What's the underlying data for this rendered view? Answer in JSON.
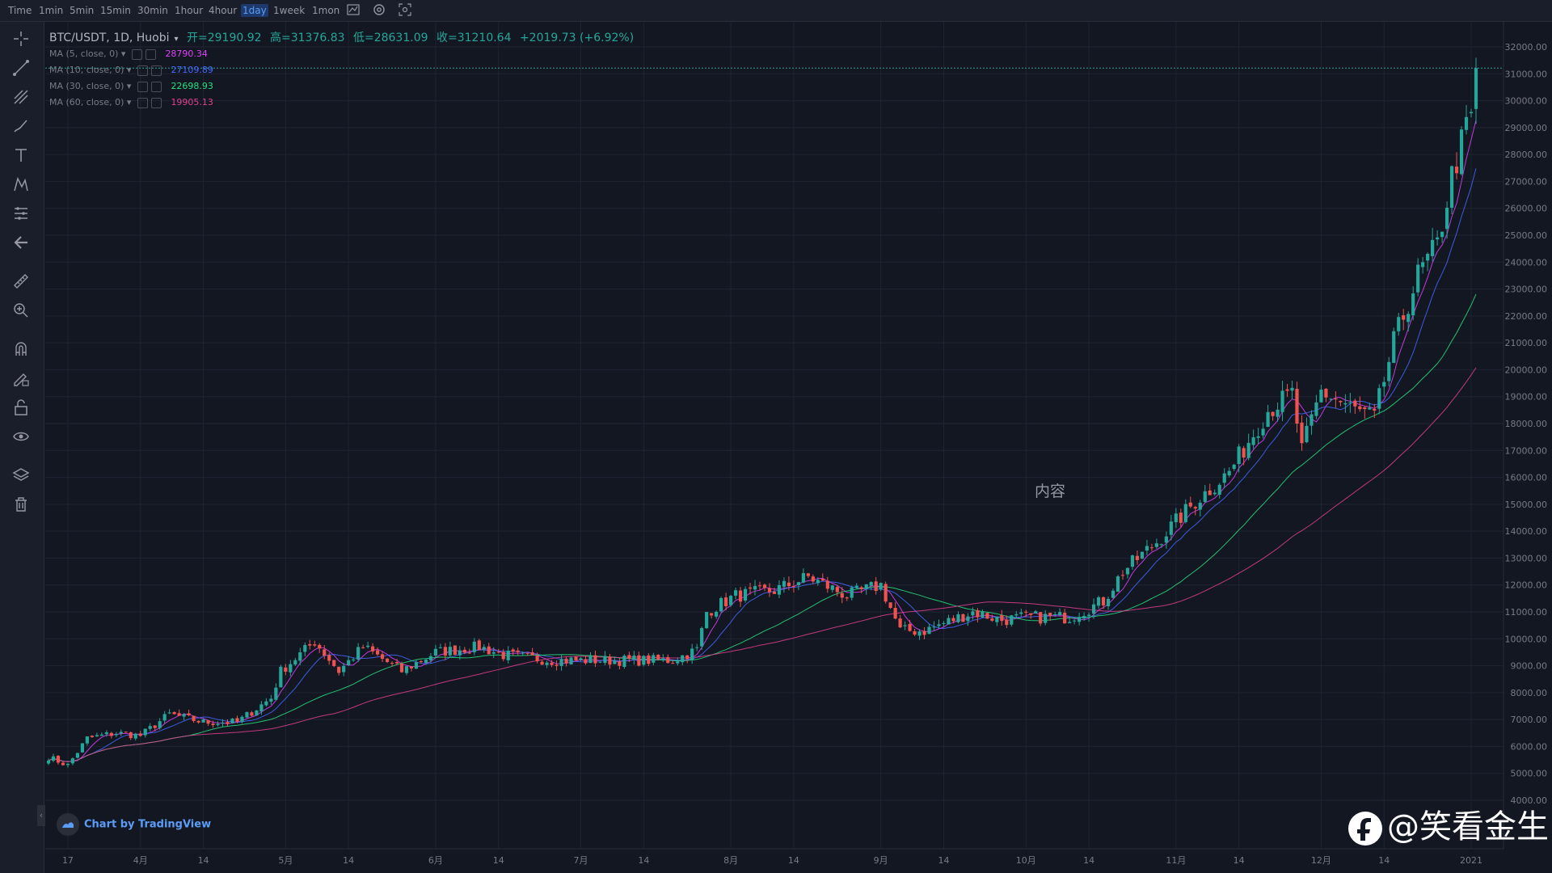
{
  "toolbar": {
    "timeframes": [
      "Time",
      "1min",
      "5min",
      "15min",
      "30min",
      "1hour",
      "4hour",
      "1day",
      "1week",
      "1mon"
    ],
    "active_timeframe": "1day",
    "icons": [
      "indicator-icon",
      "settings-icon",
      "screenshot-icon"
    ]
  },
  "left_tools": [
    "crosshair-icon",
    "trendline-icon",
    "fib-icon",
    "brush-icon",
    "text-icon",
    "pattern-icon",
    "measure-lines-icon",
    "back-arrow-icon",
    "ruler-icon",
    "zoom-in-icon",
    "magnet-icon",
    "lock-pencil-icon",
    "lock-icon",
    "eye-icon",
    "layers-icon",
    "trash-icon"
  ],
  "legend": {
    "symbol": "BTC/USDT, 1D, Huobi",
    "open_label": "开=29190.92",
    "high_label": "高=31376.83",
    "low_label": "低=28631.09",
    "close_label": "收=31210.64",
    "change_label": "+2019.73 (+6.92%)",
    "ma": [
      {
        "label": "MA (5, close, 0)",
        "value": "28790.34",
        "color": "#e040fb"
      },
      {
        "label": "MA (10, close, 0)",
        "value": "27109.89",
        "color": "#4468ff"
      },
      {
        "label": "MA (30, close, 0)",
        "value": "22698.93",
        "color": "#26e07f"
      },
      {
        "label": "MA (60, close, 0)",
        "value": "19905.13",
        "color": "#e0408f"
      }
    ]
  },
  "center_watermark": "内容",
  "tv_badge": "Chart by TradingView",
  "brand_watermark": "@笑看金生",
  "colors": {
    "up": "#26a69a",
    "down": "#ef5350",
    "background": "#131722",
    "grid": "#1f2433",
    "price_line": "#26a69a"
  },
  "chart_data": {
    "type": "candlestick",
    "symbol": "BTC/USDT",
    "interval": "1D",
    "ylim": [
      4000,
      32500
    ],
    "y_ticks": [
      "4000.00",
      "5000.00",
      "6000.00",
      "7000.00",
      "8000.00",
      "9000.00",
      "10000.00",
      "11000.00",
      "12000.00",
      "13000.00",
      "14000.00",
      "15000.00",
      "16000.00",
      "17000.00",
      "18000.00",
      "19000.00",
      "20000.00",
      "21000.00",
      "22000.00",
      "23000.00",
      "24000.00",
      "25000.00",
      "26000.00",
      "27000.00",
      "28000.00",
      "29000.00",
      "30000.00",
      "31000.00",
      "32000.00"
    ],
    "x_ticks": [
      "17",
      "4月",
      "14",
      "5月",
      "14",
      "6月",
      "14",
      "7月",
      "14",
      "8月",
      "14",
      "9月",
      "14",
      "10月",
      "14",
      "11月",
      "14",
      "12月",
      "14",
      "2021"
    ],
    "last_price": "31210.64",
    "close_series": [
      [
        "2020-03-13",
        5600
      ],
      [
        "2020-03-17",
        5300
      ],
      [
        "2020-03-21",
        6300
      ],
      [
        "2020-03-27",
        6500
      ],
      [
        "2020-04-01",
        6400
      ],
      [
        "2020-04-07",
        7200
      ],
      [
        "2020-04-14",
        6900
      ],
      [
        "2020-04-21",
        6900
      ],
      [
        "2020-04-28",
        7800
      ],
      [
        "2020-04-30",
        8800
      ],
      [
        "2020-05-07",
        9900
      ],
      [
        "2020-05-12",
        8800
      ],
      [
        "2020-05-17",
        9700
      ],
      [
        "2020-05-25",
        8800
      ],
      [
        "2020-06-01",
        9500
      ],
      [
        "2020-06-10",
        9700
      ],
      [
        "2020-06-15",
        9400
      ],
      [
        "2020-06-25",
        9200
      ],
      [
        "2020-07-01",
        9200
      ],
      [
        "2020-07-10",
        9200
      ],
      [
        "2020-07-20",
        9200
      ],
      [
        "2020-07-25",
        9600
      ],
      [
        "2020-07-27",
        11000
      ],
      [
        "2020-08-02",
        11600
      ],
      [
        "2020-08-10",
        11800
      ],
      [
        "2020-08-17",
        12300
      ],
      [
        "2020-08-25",
        11600
      ],
      [
        "2020-09-01",
        12000
      ],
      [
        "2020-09-05",
        10300
      ],
      [
        "2020-09-10",
        10300
      ],
      [
        "2020-09-20",
        11000
      ],
      [
        "2020-09-26",
        10700
      ],
      [
        "2020-10-01",
        10800
      ],
      [
        "2020-10-10",
        10800
      ],
      [
        "2020-10-17",
        11400
      ],
      [
        "2020-10-21",
        12500
      ],
      [
        "2020-10-28",
        13600
      ],
      [
        "2020-11-05",
        15100
      ],
      [
        "2020-11-12",
        16200
      ],
      [
        "2020-11-20",
        18500
      ],
      [
        "2020-11-25",
        19100
      ],
      [
        "2020-11-27",
        17000
      ],
      [
        "2020-12-01",
        19200
      ],
      [
        "2020-12-08",
        18500
      ],
      [
        "2020-12-12",
        18200
      ],
      [
        "2020-12-16",
        21000
      ],
      [
        "2020-12-21",
        23500
      ],
      [
        "2020-12-25",
        24600
      ],
      [
        "2020-12-28",
        27200
      ],
      [
        "2020-12-31",
        29000
      ],
      [
        "2021-01-01",
        29400
      ],
      [
        "2021-01-02",
        31210.64
      ]
    ],
    "ma_series": [
      {
        "name": "MA (5, close, 0)",
        "last": 28790.34
      },
      {
        "name": "MA (10, close, 0)",
        "last": 27109.89
      },
      {
        "name": "MA (30, close, 0)",
        "last": 22698.93
      },
      {
        "name": "MA (60, close, 0)",
        "last": 19905.13
      }
    ],
    "grid": true
  }
}
